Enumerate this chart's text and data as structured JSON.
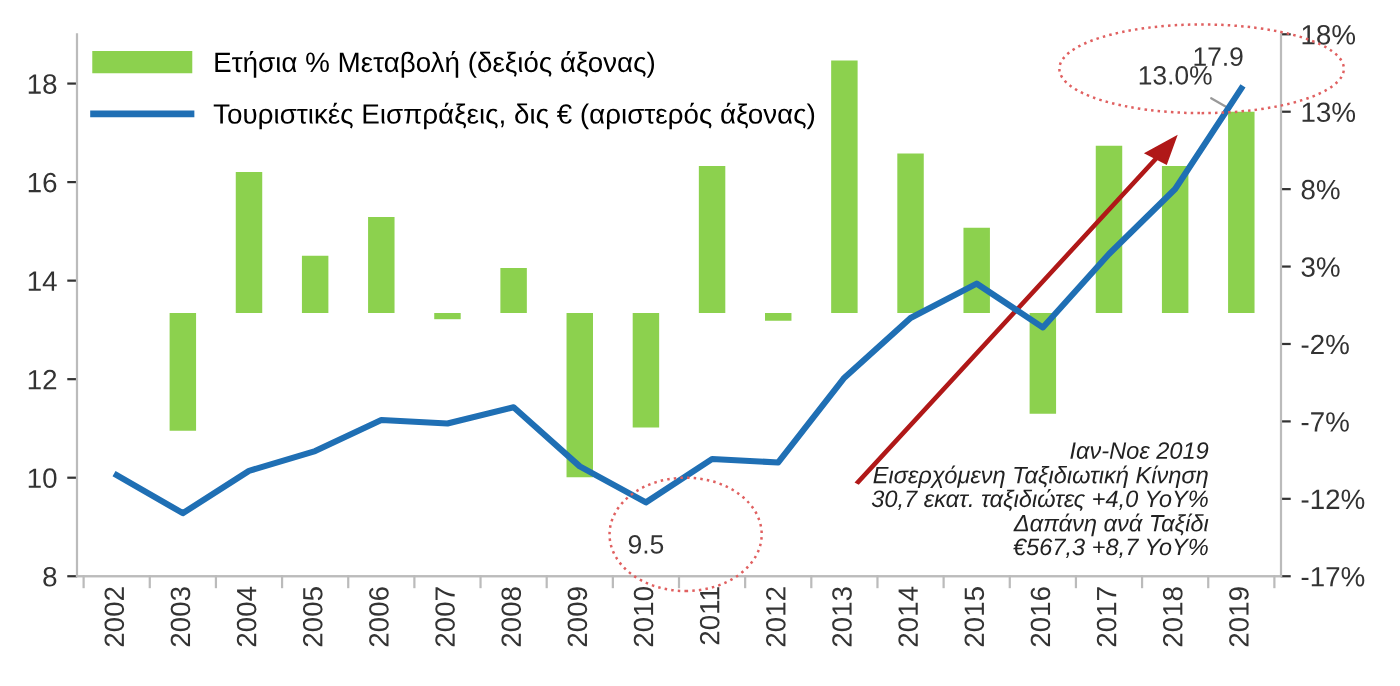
{
  "chart_data": {
    "type": "bar",
    "categories": [
      "2002",
      "2003",
      "2004",
      "2005",
      "2006",
      "2007",
      "2008",
      "2009",
      "2010",
      "2011",
      "2012",
      "2013",
      "2014",
      "2015",
      "2016",
      "2017",
      "2018",
      "2019"
    ],
    "series": [
      {
        "name": "Ετήσια % Μεταβολή (δεξιός άξονας)",
        "axis": "y2",
        "color": "#8cd14e",
        "values": [
          null,
          -7.6,
          9.1,
          3.7,
          6.2,
          -0.4,
          2.9,
          -10.6,
          -7.4,
          9.5,
          -0.5,
          16.3,
          10.3,
          5.5,
          -6.5,
          10.8,
          9.5,
          13.0
        ],
        "value_labels": [
          null,
          null,
          null,
          null,
          null,
          null,
          null,
          null,
          null,
          null,
          null,
          null,
          null,
          null,
          null,
          null,
          null,
          "13.0%"
        ]
      },
      {
        "name": "Τουριστικές Εισπράξεις, δις € (αριστερός άξονας)",
        "type": "line",
        "color": "#1f6fb4",
        "values": [
          10.05,
          9.28,
          10.14,
          10.54,
          11.17,
          11.1,
          11.43,
          10.23,
          9.5,
          10.38,
          10.31,
          12.03,
          13.24,
          13.94,
          13.05,
          14.54,
          15.86,
          17.9
        ],
        "value_labels": [
          null,
          null,
          null,
          null,
          null,
          null,
          null,
          null,
          "9.5",
          null,
          null,
          null,
          null,
          null,
          null,
          null,
          null,
          "17.9"
        ]
      }
    ],
    "ylim": [
      8,
      19
    ],
    "yticks": [
      8,
      10,
      12,
      14,
      16,
      18
    ],
    "y2lim": [
      -17,
      18
    ],
    "y2ticks": [
      {
        "value": -17,
        "label": "-17%"
      },
      {
        "value": -12,
        "label": "-12%"
      },
      {
        "value": -7,
        "label": "-7%"
      },
      {
        "value": -2,
        "label": "-2%"
      },
      {
        "value": 3,
        "label": "3%"
      },
      {
        "value": 8,
        "label": "8%"
      },
      {
        "value": 13,
        "label": "13%"
      },
      {
        "value": 18,
        "label": "18%"
      }
    ],
    "annotations": [
      "Ιαν-Νοε 2019\nΕισερχόμενη Ταξιδιωτική Κίνηση\n30,7 εκατ. ταξιδιώτες +4,0 YoY%\nΔαπάνη ανά Ταξίδι\n€567,3 +8,7 YoY%"
    ],
    "legend": "top left",
    "grid": false,
    "marker": "none",
    "line_style": "solid"
  }
}
